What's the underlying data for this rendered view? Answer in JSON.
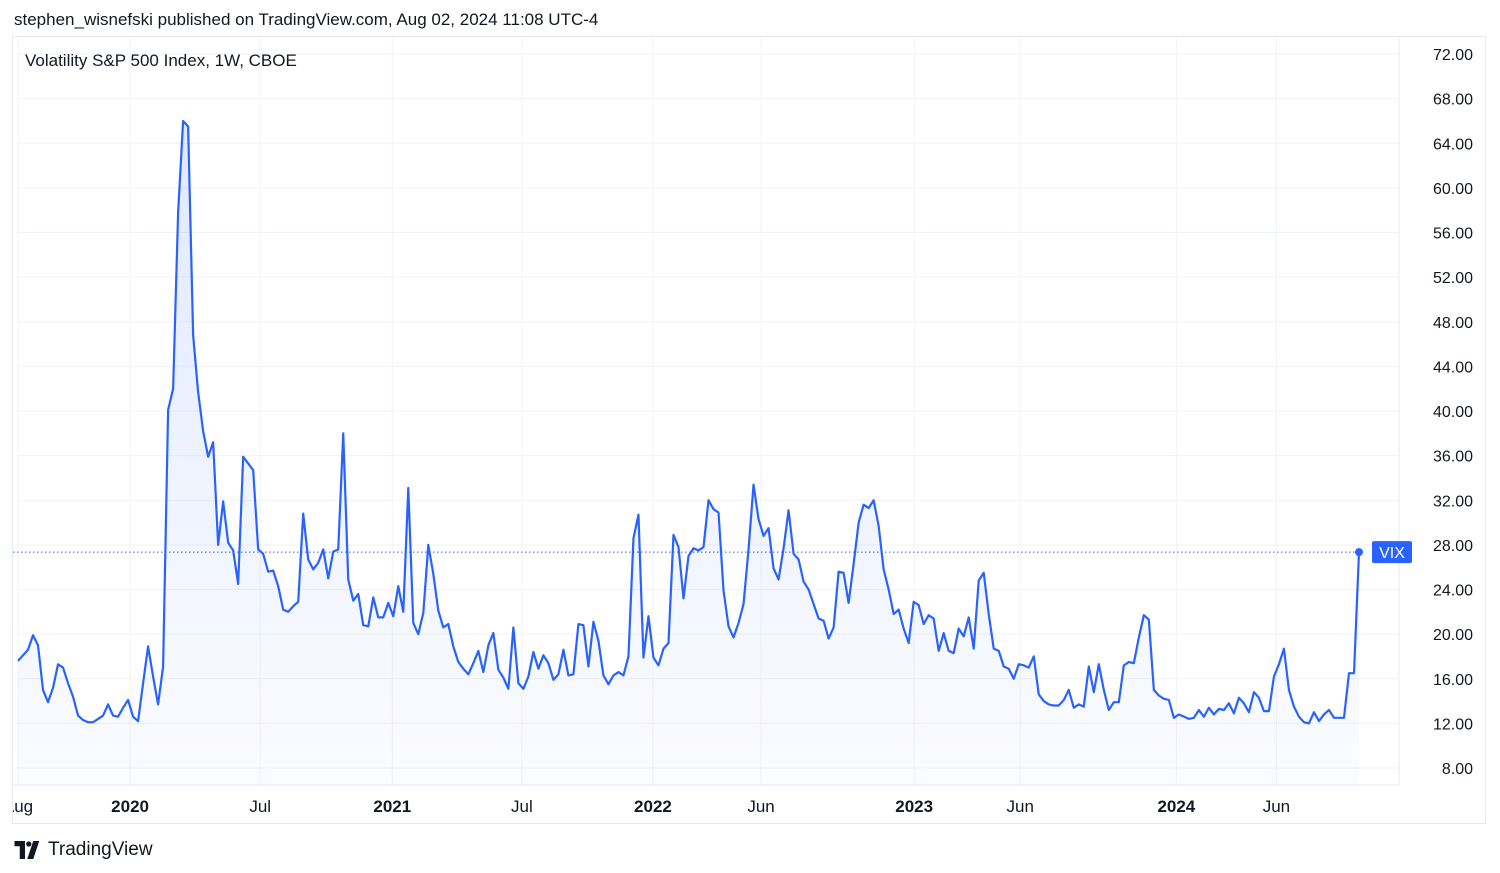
{
  "header": {
    "published": "stephen_wisnefski published on TradingView.com, Aug 02, 2024 11:08 UTC-4"
  },
  "footer": {
    "brand": "TradingView",
    "logo_icon": "tradingview-logo-icon"
  },
  "colors": {
    "line": "#2962ff",
    "label_bg": "#2962ff",
    "grid": "#f0f3fa",
    "text": "#131722"
  },
  "chart_data": {
    "type": "area",
    "title": "Volatility S&P 500 Index, 1W, CBOE",
    "interval": "1W",
    "series": [
      {
        "name": "VIX",
        "last_value": 27.35,
        "values": [
          17.6,
          18.1,
          18.6,
          19.9,
          19.0,
          15.0,
          13.9,
          15.2,
          17.3,
          17.0,
          15.6,
          14.4,
          12.7,
          12.3,
          12.1,
          12.1,
          12.4,
          12.7,
          13.7,
          12.7,
          12.6,
          13.4,
          14.1,
          12.6,
          12.2,
          15.6,
          18.9,
          16.2,
          13.7,
          17.1,
          40.1,
          42.0,
          57.8,
          66.0,
          65.5,
          46.8,
          41.7,
          38.2,
          35.9,
          37.2,
          28.0,
          31.9,
          28.2,
          27.5,
          24.5,
          35.9,
          35.3,
          34.7,
          27.6,
          27.2,
          25.6,
          25.7,
          24.3,
          22.2,
          22.0,
          22.5,
          22.9,
          30.8,
          26.7,
          25.8,
          26.4,
          27.6,
          25.0,
          27.4,
          27.6,
          38.0,
          24.9,
          23.0,
          23.6,
          20.8,
          20.7,
          23.3,
          21.5,
          21.5,
          22.8,
          21.6,
          24.3,
          22.0,
          33.1,
          21.0,
          20.0,
          21.9,
          28.0,
          25.4,
          22.1,
          20.6,
          20.9,
          18.9,
          17.5,
          16.9,
          16.4,
          17.4,
          18.5,
          16.6,
          19.0,
          20.1,
          16.8,
          16.1,
          15.1,
          20.6,
          15.6,
          15.1,
          16.2,
          18.4,
          16.9,
          18.1,
          17.4,
          15.9,
          16.4,
          18.6,
          16.3,
          16.4,
          20.9,
          20.8,
          17.1,
          21.1,
          19.4,
          16.3,
          15.5,
          16.3,
          16.6,
          16.3,
          18.0,
          28.6,
          30.7,
          17.9,
          21.6,
          17.9,
          17.2,
          18.7,
          19.2,
          28.9,
          27.8,
          23.2,
          27.0,
          27.7,
          27.5,
          27.8,
          32.0,
          31.2,
          30.9,
          23.9,
          20.7,
          19.7,
          21.0,
          22.7,
          27.6,
          33.4,
          30.3,
          28.8,
          29.5,
          25.9,
          24.9,
          27.7,
          31.1,
          27.2,
          26.7,
          24.7,
          24.0,
          22.7,
          21.4,
          21.2,
          19.6,
          20.6,
          25.6,
          25.5,
          22.8,
          26.3,
          30.0,
          31.6,
          31.3,
          32.0,
          29.7,
          25.8,
          24.0,
          21.8,
          22.2,
          20.5,
          19.2,
          22.9,
          22.6,
          20.9,
          21.7,
          21.4,
          18.5,
          20.1,
          18.5,
          18.3,
          20.5,
          19.8,
          21.5,
          18.7,
          24.8,
          25.5,
          21.8,
          18.7,
          18.5,
          17.1,
          16.9,
          16.0,
          17.3,
          17.2,
          17.0,
          18.0,
          14.6,
          14.0,
          13.7,
          13.6,
          13.6,
          14.1,
          15.0,
          13.4,
          13.7,
          13.5,
          17.1,
          14.8,
          17.3,
          15.0,
          13.2,
          13.9,
          13.9,
          17.2,
          17.5,
          17.4,
          19.7,
          21.7,
          21.3,
          15.0,
          14.5,
          14.2,
          14.1,
          12.5,
          12.8,
          12.6,
          12.4,
          12.5,
          13.2,
          12.6,
          13.4,
          12.8,
          13.3,
          13.2,
          13.8,
          12.9,
          14.3,
          13.8,
          13.0,
          14.8,
          14.3,
          13.1,
          13.1,
          16.2,
          17.3,
          18.7,
          15.0,
          13.5,
          12.6,
          12.1,
          12.0,
          13.0,
          12.2,
          12.8,
          13.2,
          12.5,
          12.5,
          12.5,
          16.5,
          16.5,
          27.35
        ]
      }
    ],
    "x_ticks": [
      {
        "label": "Aug",
        "bold": false
      },
      {
        "label": "2020",
        "bold": true
      },
      {
        "label": "Jul",
        "bold": false
      },
      {
        "label": "2021",
        "bold": true
      },
      {
        "label": "Jul",
        "bold": false
      },
      {
        "label": "2022",
        "bold": true
      },
      {
        "label": "Jun",
        "bold": false
      },
      {
        "label": "2023",
        "bold": true
      },
      {
        "label": "Jun",
        "bold": false
      },
      {
        "label": "2024",
        "bold": true
      },
      {
        "label": "Jun",
        "bold": false
      }
    ],
    "y_ticks": [
      "8.00",
      "12.00",
      "16.00",
      "20.00",
      "24.00",
      "28.00",
      "32.00",
      "36.00",
      "40.00",
      "44.00",
      "48.00",
      "52.00",
      "56.00",
      "60.00",
      "64.00",
      "68.00",
      "72.00"
    ],
    "ylim": [
      5.0,
      73.0
    ],
    "grid": true,
    "price_line": "dotted"
  }
}
